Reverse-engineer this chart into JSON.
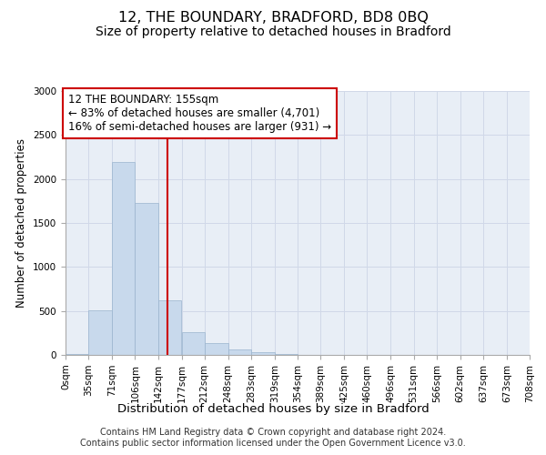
{
  "title": "12, THE BOUNDARY, BRADFORD, BD8 0BQ",
  "subtitle": "Size of property relative to detached houses in Bradford",
  "xlabel": "Distribution of detached houses by size in Bradford",
  "ylabel": "Number of detached properties",
  "property_size": 155,
  "annotation_line1": "12 THE BOUNDARY: 155sqm",
  "annotation_line2": "← 83% of detached houses are smaller (4,701)",
  "annotation_line3": "16% of semi-detached houses are larger (931) →",
  "footer1": "Contains HM Land Registry data © Crown copyright and database right 2024.",
  "footer2": "Contains public sector information licensed under the Open Government Licence v3.0.",
  "bin_edges": [
    0,
    35,
    71,
    106,
    142,
    177,
    212,
    248,
    283,
    319,
    354,
    389,
    425,
    460,
    496,
    531,
    566,
    602,
    637,
    673,
    708
  ],
  "bin_labels": [
    "0sqm",
    "35sqm",
    "71sqm",
    "106sqm",
    "142sqm",
    "177sqm",
    "212sqm",
    "248sqm",
    "283sqm",
    "319sqm",
    "354sqm",
    "389sqm",
    "425sqm",
    "460sqm",
    "496sqm",
    "531sqm",
    "566sqm",
    "602sqm",
    "637sqm",
    "673sqm",
    "708sqm"
  ],
  "bar_heights": [
    10,
    510,
    2190,
    1730,
    620,
    255,
    130,
    60,
    28,
    12,
    5,
    3,
    2,
    1,
    3,
    1,
    0,
    0,
    0,
    0
  ],
  "bar_color": "#c8d9ec",
  "bar_edgecolor": "#9ab4ce",
  "vline_color": "#cc0000",
  "vline_x": 155,
  "annotation_box_edgecolor": "#cc0000",
  "ylim": [
    0,
    3000
  ],
  "yticks": [
    0,
    500,
    1000,
    1500,
    2000,
    2500,
    3000
  ],
  "grid_color": "#d0d8e8",
  "background_color": "#e8eef6",
  "title_fontsize": 11.5,
  "subtitle_fontsize": 10,
  "xlabel_fontsize": 9.5,
  "ylabel_fontsize": 8.5,
  "tick_fontsize": 7.5,
  "annotation_fontsize": 8.5,
  "footer_fontsize": 7
}
